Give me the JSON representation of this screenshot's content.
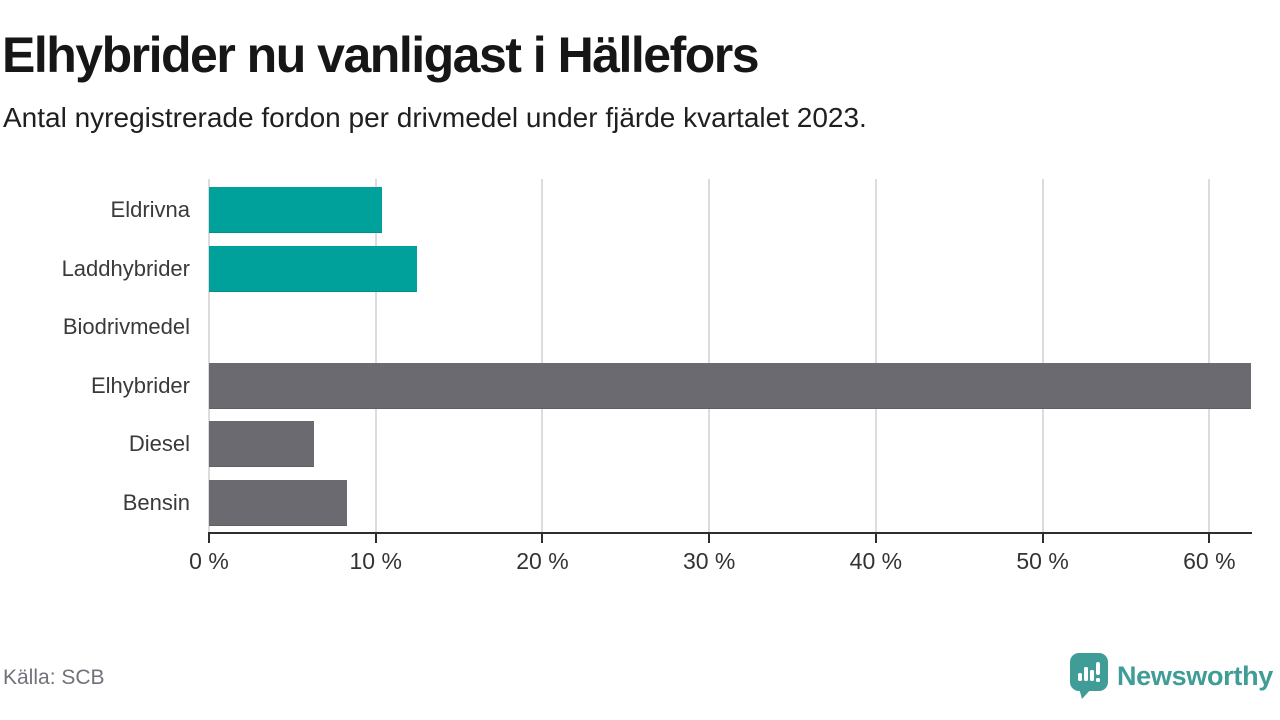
{
  "header": {
    "title": "Elhybrider nu vanligast i Hällefors",
    "subtitle": "Antal nyregistrerade fordon per drivmedel under fjärde kvartalet 2023."
  },
  "footer": {
    "source": "Källa: SCB",
    "brand": "Newsworthy"
  },
  "colors": {
    "teal_bar": "#00a19a",
    "gray_bar": "#6b6a70",
    "brand_teal": "#3f9c96",
    "gridline": "#dcdcdc",
    "axis": "#2e2e2e",
    "category_label": "#3a3a3a",
    "tick_label": "#333333",
    "source_text": "#71717b",
    "title_text": "#161616"
  },
  "chart_data": {
    "type": "bar",
    "orientation": "horizontal",
    "title": "Elhybrider nu vanligast i Hällefors",
    "subtitle": "Antal nyregistrerade fordon per drivmedel under fjärde kvartalet 2023.",
    "categories": [
      "Eldrivna",
      "Laddhybrider",
      "Biodrivmedel",
      "Elhybrider",
      "Diesel",
      "Bensin"
    ],
    "values": [
      10.4,
      12.5,
      0,
      62.5,
      6.3,
      8.3
    ],
    "bar_colors": [
      "#00a19a",
      "#00a19a",
      "#6b6a70",
      "#6b6a70",
      "#6b6a70",
      "#6b6a70"
    ],
    "unit": "%",
    "x_ticks": [
      0,
      10,
      20,
      30,
      40,
      50,
      60
    ],
    "x_tick_labels": [
      "0 %",
      "10 %",
      "20 %",
      "30 %",
      "40 %",
      "50 %",
      "60 %"
    ],
    "xlim": [
      0,
      62.5
    ],
    "grid": true,
    "legend": "none",
    "source": "SCB"
  }
}
